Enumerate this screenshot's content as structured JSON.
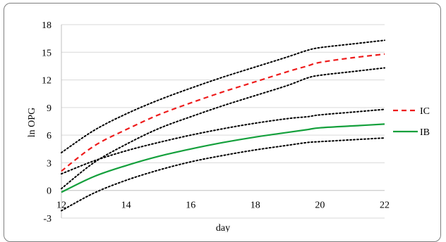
{
  "chart_data": {
    "type": "line",
    "title": "",
    "xlabel": "day",
    "ylabel": "ln OPG",
    "xlim": [
      12,
      22
    ],
    "ylim": [
      -3,
      18
    ],
    "x_ticks": [
      12,
      14,
      16,
      18,
      20,
      22
    ],
    "y_ticks": [
      -3,
      0,
      3,
      6,
      9,
      12,
      15,
      18
    ],
    "grid": "horizontal",
    "legend": "right",
    "series": [
      {
        "name": "IC",
        "style": "dashed",
        "color": "#ee1c1c",
        "x": [
          12,
          13,
          14,
          15,
          16,
          17,
          18,
          19,
          19.6,
          20,
          21,
          22
        ],
        "y": [
          2.1,
          4.8,
          6.6,
          8.2,
          9.5,
          10.7,
          11.8,
          12.9,
          13.5,
          13.9,
          14.4,
          14.8
        ]
      },
      {
        "name": "IC upper",
        "style": "dotted",
        "color": "#000000",
        "x": [
          12,
          13,
          14,
          15,
          16,
          17,
          18,
          19,
          19.6,
          20,
          21,
          22
        ],
        "y": [
          4.1,
          6.5,
          8.3,
          9.8,
          11.1,
          12.3,
          13.4,
          14.5,
          15.2,
          15.5,
          15.9,
          16.3
        ]
      },
      {
        "name": "IC lower",
        "style": "dotted",
        "color": "#000000",
        "x": [
          12,
          13,
          14,
          15,
          16,
          17,
          18,
          19,
          19.6,
          20,
          21,
          22
        ],
        "y": [
          0.2,
          3.0,
          5.0,
          6.7,
          8.0,
          9.2,
          10.3,
          11.4,
          12.2,
          12.5,
          12.9,
          13.3
        ]
      },
      {
        "name": "IB",
        "style": "solid",
        "color": "#14a03c",
        "x": [
          12,
          13,
          14,
          15,
          16,
          17,
          18,
          19,
          19.6,
          20,
          21,
          22
        ],
        "y": [
          -0.2,
          1.5,
          2.7,
          3.7,
          4.5,
          5.2,
          5.8,
          6.3,
          6.6,
          6.8,
          7.0,
          7.2
        ]
      },
      {
        "name": "IB upper",
        "style": "dotted",
        "color": "#000000",
        "x": [
          12,
          13,
          14,
          15,
          16,
          17,
          18,
          19,
          19.6,
          20,
          21,
          22
        ],
        "y": [
          1.8,
          3.2,
          4.3,
          5.2,
          6.0,
          6.7,
          7.3,
          7.8,
          8.0,
          8.2,
          8.5,
          8.8
        ]
      },
      {
        "name": "IB lower",
        "style": "dotted",
        "color": "#000000",
        "x": [
          12,
          13,
          14,
          15,
          16,
          17,
          18,
          19,
          19.6,
          20,
          21,
          22
        ],
        "y": [
          -2.2,
          -0.3,
          1.1,
          2.2,
          3.1,
          3.8,
          4.4,
          4.9,
          5.2,
          5.3,
          5.5,
          5.7
        ]
      }
    ],
    "legend_entries": [
      {
        "label": "IC",
        "color": "#ee1c1c",
        "style": "dashed"
      },
      {
        "label": "IB",
        "color": "#14a03c",
        "style": "solid"
      }
    ],
    "colors": {
      "grid": "#d9d9d9",
      "axis": "#bfbfbf"
    }
  }
}
